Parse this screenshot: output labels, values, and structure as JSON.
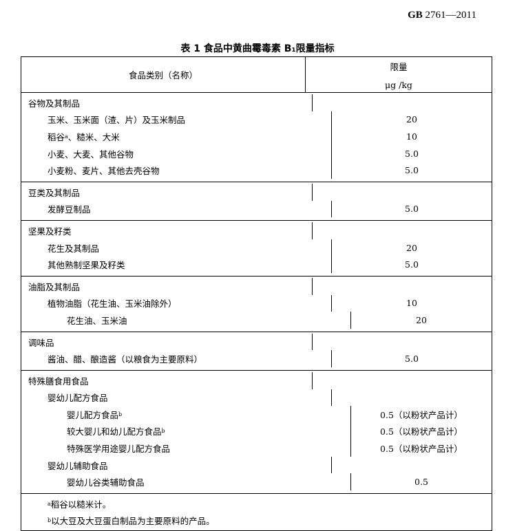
{
  "standard": {
    "code": "GB",
    "number": "2761—2011"
  },
  "table": {
    "title": "表 1  食品中黄曲霉毒素 B₁限量指标",
    "header": {
      "category": "食品类别（名称）",
      "limit": "限量",
      "unit": "μg /kg"
    },
    "groups": [
      {
        "rows": [
          {
            "name": "谷物及其制品",
            "indent": 0,
            "value": ""
          },
          {
            "name": "玉米、玉米面（渣、片）及玉米制品",
            "indent": 1,
            "value": "20"
          },
          {
            "name": "稻谷",
            "sup": "a",
            "name2": "、糙米、大米",
            "indent": 1,
            "value": "10"
          },
          {
            "name": "小麦、大麦、其他谷物",
            "indent": 1,
            "value": "5.0"
          },
          {
            "name": "小麦粉、麦片、其他去壳谷物",
            "indent": 1,
            "value": "5.0"
          }
        ]
      },
      {
        "rows": [
          {
            "name": "豆类及其制品",
            "indent": 0,
            "value": ""
          },
          {
            "name": "发酵豆制品",
            "indent": 1,
            "value": "5.0"
          }
        ]
      },
      {
        "rows": [
          {
            "name": "坚果及籽类",
            "indent": 0,
            "value": ""
          },
          {
            "name": "花生及其制品",
            "indent": 1,
            "value": "20"
          },
          {
            "name": "其他熟制坚果及籽类",
            "indent": 1,
            "value": "5.0"
          }
        ]
      },
      {
        "rows": [
          {
            "name": "油脂及其制品",
            "indent": 0,
            "value": ""
          },
          {
            "name": "植物油脂（花生油、玉米油除外）",
            "indent": 1,
            "value": "10"
          },
          {
            "name": "花生油、玉米油",
            "indent": 2,
            "value": "20"
          }
        ]
      },
      {
        "rows": [
          {
            "name": "调味品",
            "indent": 0,
            "value": ""
          },
          {
            "name": "酱油、醋、酿造酱（以粮食为主要原料）",
            "indent": 1,
            "value": "5.0"
          }
        ]
      },
      {
        "rows": [
          {
            "name": "特殊膳食用食品",
            "indent": 0,
            "value": ""
          },
          {
            "name": "婴幼儿配方食品",
            "indent": 1,
            "value": ""
          },
          {
            "name": "婴儿配方食品",
            "sup": "b",
            "indent": 2,
            "value": "0.5（以粉状产品计）"
          },
          {
            "name": "较大婴儿和幼儿配方食品",
            "sup": "b",
            "indent": 2,
            "value": "0.5（以粉状产品计）"
          },
          {
            "name": "特殊医学用途婴儿配方食品",
            "indent": 2,
            "value": "0.5（以粉状产品计）"
          },
          {
            "name": "婴幼儿辅助食品",
            "indent": 1,
            "value": ""
          },
          {
            "name": "婴幼儿谷类辅助食品",
            "indent": 2,
            "value": "0.5"
          }
        ]
      }
    ],
    "footnotes": [
      {
        "mark": "a",
        "text": "稻谷以糙米计。"
      },
      {
        "mark": "b",
        "text": " 以大豆及大豆蛋白制品为主要原料的产品。"
      }
    ]
  }
}
